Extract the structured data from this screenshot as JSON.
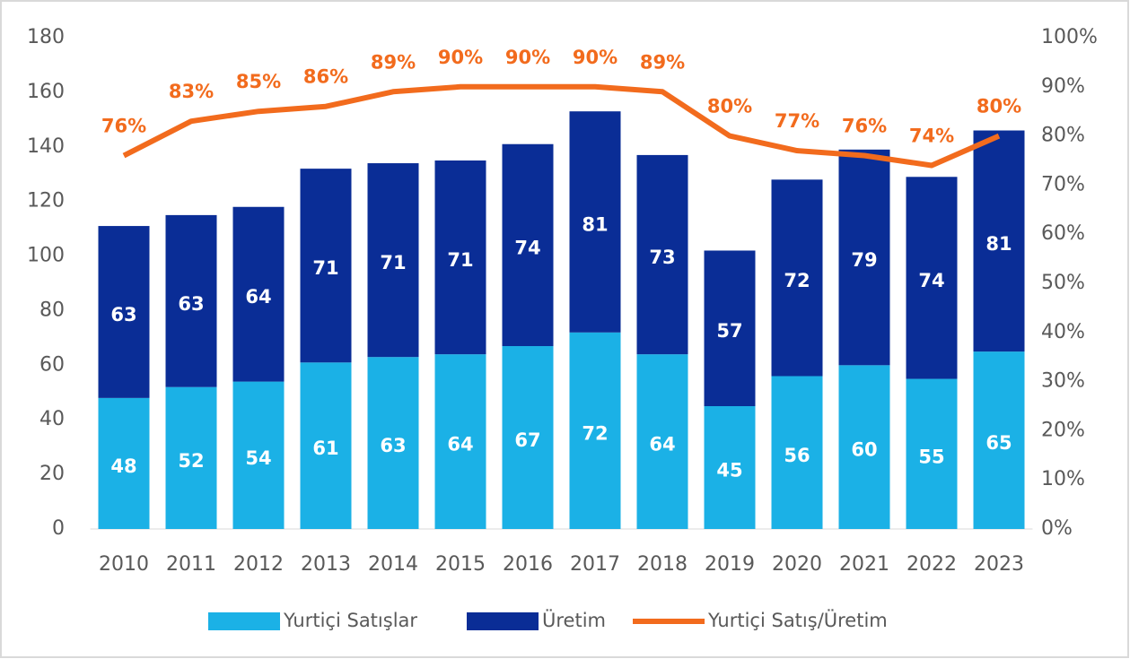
{
  "chart_data": {
    "type": "bar",
    "categories": [
      "2010",
      "2011",
      "2012",
      "2013",
      "2014",
      "2015",
      "2016",
      "2017",
      "2018",
      "2019",
      "2020",
      "2021",
      "2022",
      "2023"
    ],
    "series": [
      {
        "name": "Yurtiçi Satışlar",
        "type": "bar",
        "color": "#1bb1e6",
        "values": [
          48,
          52,
          54,
          61,
          63,
          64,
          67,
          72,
          64,
          45,
          56,
          60,
          55,
          65
        ]
      },
      {
        "name": "Üretim",
        "type": "bar",
        "color": "#0a2d96",
        "values": [
          63,
          63,
          64,
          71,
          71,
          71,
          74,
          81,
          73,
          57,
          72,
          79,
          74,
          81
        ]
      },
      {
        "name": "Yurtiçi Satış/Üretim",
        "type": "line",
        "axis": "y2",
        "color": "#f26b1d",
        "values": [
          76,
          83,
          85,
          86,
          89,
          90,
          90,
          90,
          89,
          80,
          77,
          76,
          74,
          80
        ],
        "value_labels": [
          "76%",
          "83%",
          "85%",
          "86%",
          "89%",
          "90%",
          "90%",
          "90%",
          "89%",
          "80%",
          "77%",
          "76%",
          "74%",
          "80%"
        ]
      }
    ],
    "stacked": true,
    "ylim": [
      0,
      180
    ],
    "yticks": [
      0,
      20,
      40,
      60,
      80,
      100,
      120,
      140,
      160,
      180
    ],
    "y2lim": [
      0,
      100
    ],
    "y2ticks": [
      {
        "value": 0,
        "label": "0%"
      },
      {
        "value": 10,
        "label": "10%"
      },
      {
        "value": 20,
        "label": "20%"
      },
      {
        "value": 30,
        "label": "30%"
      },
      {
        "value": 40,
        "label": "40%"
      },
      {
        "value": 50,
        "label": "50%"
      },
      {
        "value": 60,
        "label": "60%"
      },
      {
        "value": 70,
        "label": "70%"
      },
      {
        "value": 80,
        "label": "80%"
      },
      {
        "value": 90,
        "label": "90%"
      },
      {
        "value": 100,
        "label": "100%"
      }
    ],
    "legend": "bottom",
    "grid": false
  }
}
